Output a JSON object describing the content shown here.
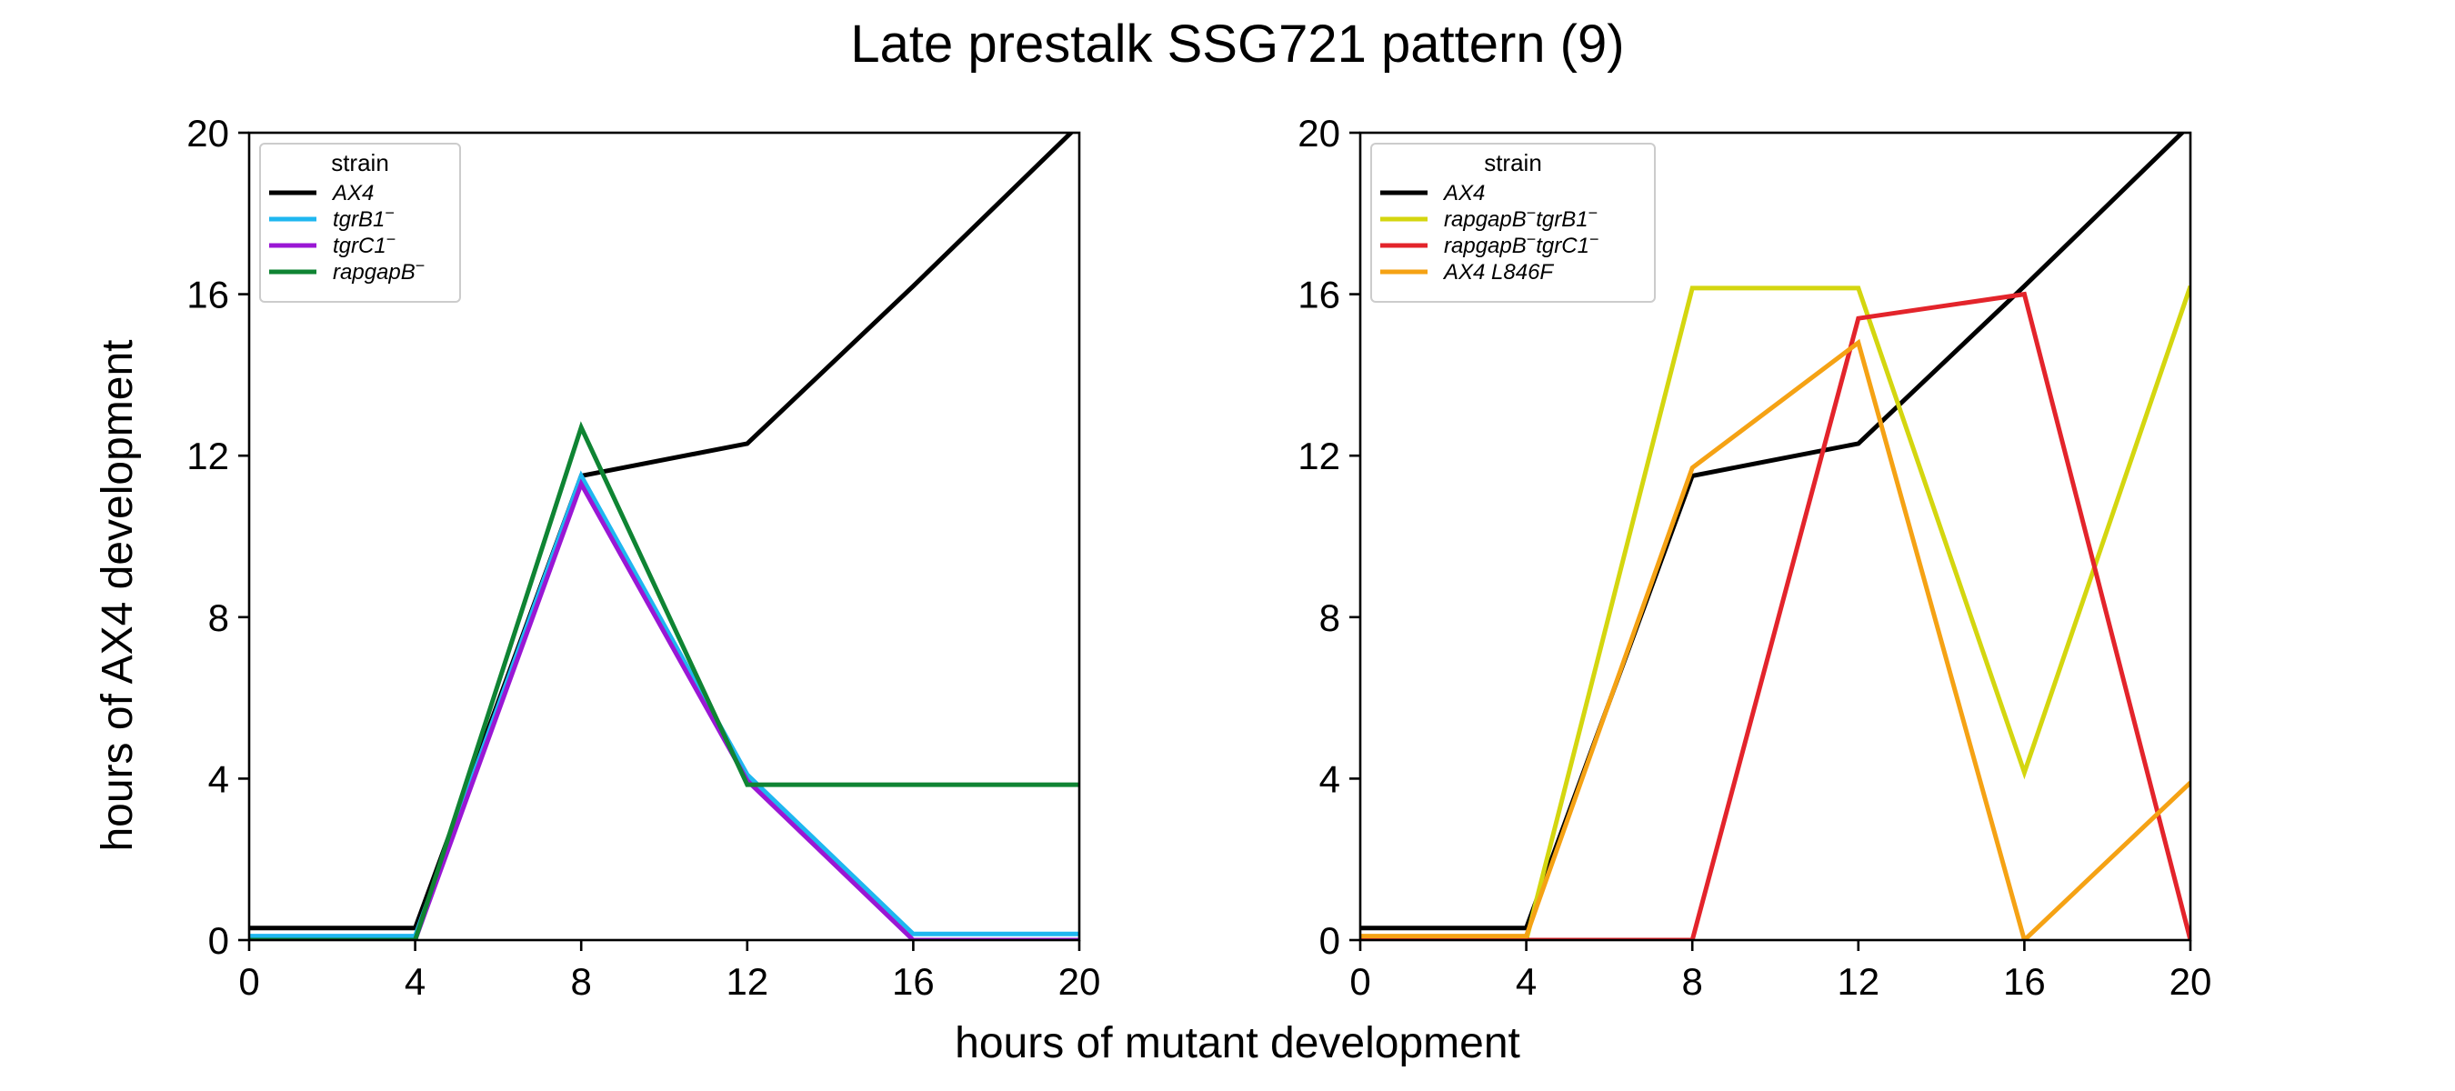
{
  "figure": {
    "title": "Late prestalk SSG721 pattern (9)",
    "xlabel": "hours of mutant development",
    "ylabel": "hours of AX4 development"
  },
  "chart_data": [
    {
      "type": "line",
      "xlim": [
        0,
        20
      ],
      "ylim": [
        0,
        20
      ],
      "xticks": [
        0,
        4,
        8,
        12,
        16,
        20
      ],
      "yticks": [
        0,
        4,
        8,
        12,
        16,
        20
      ],
      "grid": false,
      "legend": {
        "title": "strain",
        "placement": "top-left"
      },
      "series": [
        {
          "name": "AX4",
          "name_base": "AX4",
          "name_sup": "",
          "color": "#000000",
          "x": [
            0,
            4,
            8,
            12,
            16,
            20
          ],
          "y": [
            0.3,
            0.3,
            11.5,
            12.3,
            16.2,
            20.2
          ]
        },
        {
          "name": "tgrB1⁻",
          "name_base": "tgrB1",
          "name_sup": "−",
          "color": "#1fb7f0",
          "x": [
            0,
            4,
            8,
            12,
            16,
            20
          ],
          "y": [
            0.1,
            0.1,
            11.5,
            4.1,
            0.15,
            0.15
          ]
        },
        {
          "name": "tgrC1⁻",
          "name_base": "tgrC1",
          "name_sup": "−",
          "color": "#9a17d4",
          "x": [
            0,
            4,
            8,
            12,
            16,
            20
          ],
          "y": [
            0.0,
            0.0,
            11.3,
            3.95,
            0.0,
            0.0
          ]
        },
        {
          "name": "rapgapB⁻",
          "name_base": "rapgapB",
          "name_sup": "−",
          "color": "#0f8433",
          "x": [
            0,
            4,
            8,
            12,
            16,
            20
          ],
          "y": [
            0.0,
            0.0,
            12.7,
            3.85,
            3.85,
            3.85
          ]
        }
      ]
    },
    {
      "type": "line",
      "xlim": [
        0,
        20
      ],
      "ylim": [
        0,
        20
      ],
      "xticks": [
        0,
        4,
        8,
        12,
        16,
        20
      ],
      "yticks": [
        0,
        4,
        8,
        12,
        16,
        20
      ],
      "grid": false,
      "legend": {
        "title": "strain",
        "placement": "top-left"
      },
      "series": [
        {
          "name": "AX4",
          "name_base": "AX4",
          "name_sup": "",
          "color": "#000000",
          "x": [
            0,
            4,
            8,
            12,
            16,
            20
          ],
          "y": [
            0.3,
            0.3,
            11.5,
            12.3,
            16.2,
            20.2
          ]
        },
        {
          "name": "rapgapB⁻tgrB1⁻",
          "name_base": "rapgapB",
          "name_sup": "−",
          "name_base2": "tgrB1",
          "name_sup2": "−",
          "color": "#d4d60f",
          "x": [
            0,
            4,
            8,
            12,
            16,
            20
          ],
          "y": [
            0.0,
            0.0,
            16.15,
            16.15,
            4.15,
            16.2
          ]
        },
        {
          "name": "rapgapB⁻tgrC1⁻",
          "name_base": "rapgapB",
          "name_sup": "−",
          "name_base2": "tgrC1",
          "name_sup2": "−",
          "color": "#e3242b",
          "x": [
            0,
            4,
            8,
            12,
            16,
            20
          ],
          "y": [
            0.0,
            0.0,
            0.0,
            15.4,
            16.0,
            0.0
          ]
        },
        {
          "name": "AX4 L846F",
          "name_base": "AX4 L846F",
          "name_sup": "",
          "color": "#f5a214",
          "x": [
            0,
            4,
            8,
            12,
            16,
            20
          ],
          "y": [
            0.1,
            0.1,
            11.7,
            14.8,
            0.0,
            3.9
          ]
        }
      ]
    }
  ]
}
